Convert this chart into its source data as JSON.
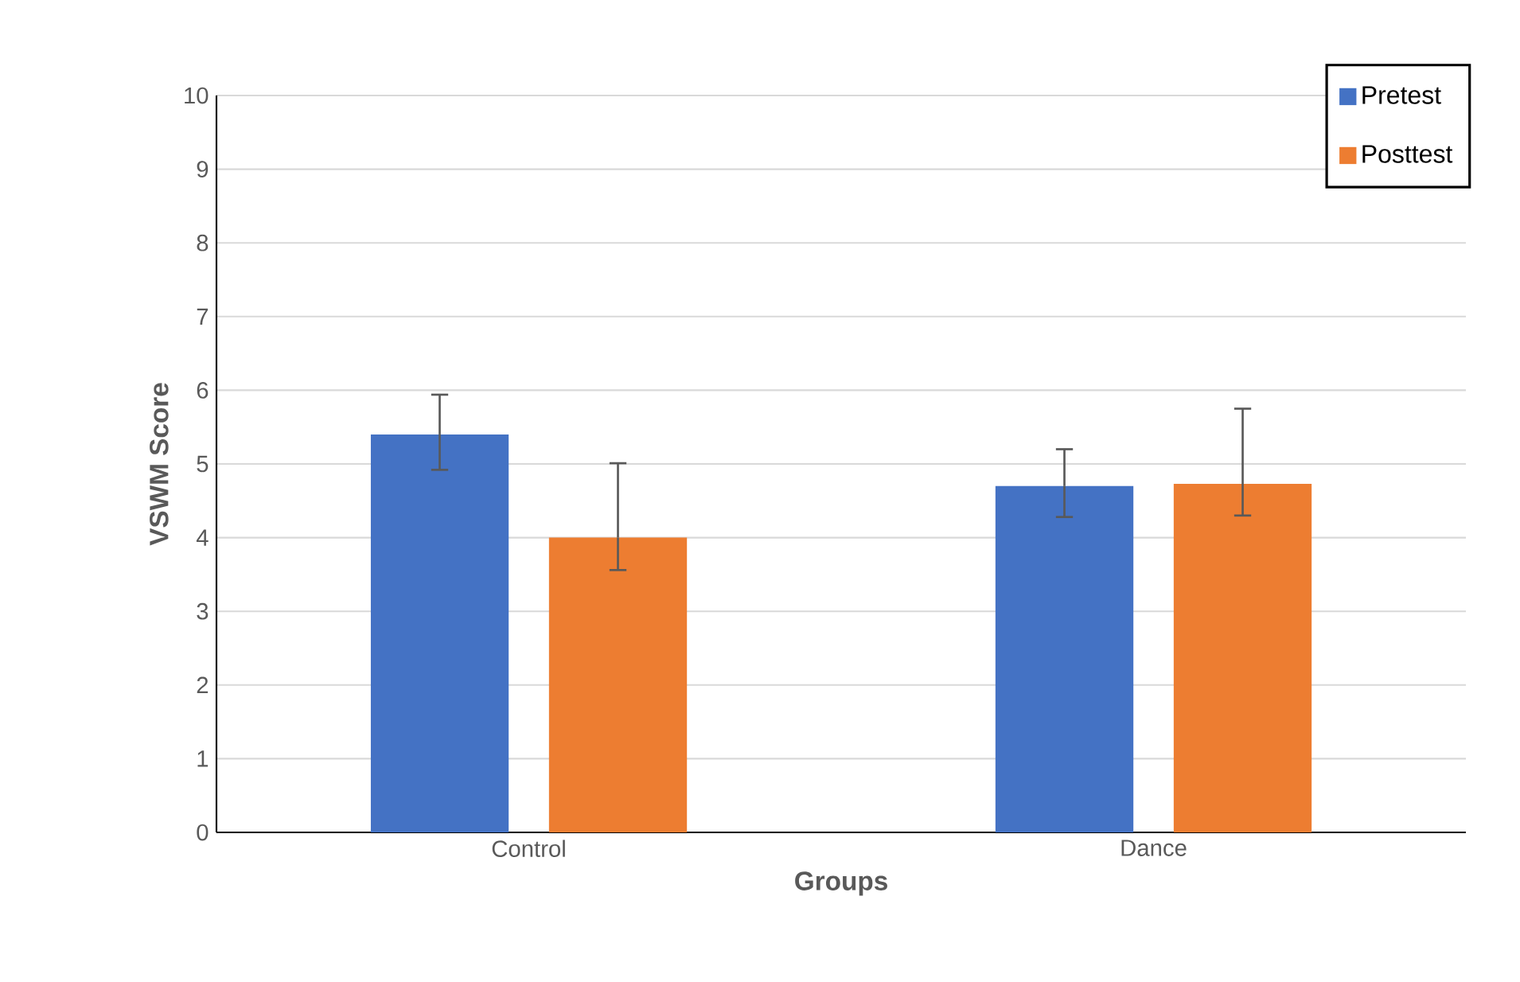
{
  "chart_data": {
    "type": "bar",
    "xlabel": "Groups",
    "ylabel": "VSWM Score",
    "categories": [
      "Control",
      "Dance"
    ],
    "series": [
      {
        "name": "Pretest",
        "color": "#4472c4",
        "values": [
          5.4,
          4.7
        ],
        "errors": [
          [
            4.92,
            5.94
          ],
          [
            4.28,
            5.2
          ]
        ]
      },
      {
        "name": "Posttest",
        "color": "#ed7d31",
        "values": [
          4.0,
          4.73
        ],
        "errors": [
          [
            3.56,
            5.01
          ],
          [
            4.3,
            5.75
          ]
        ]
      }
    ],
    "ylim": [
      0,
      10
    ],
    "yticks": [
      0,
      1,
      2,
      3,
      4,
      5,
      6,
      7,
      8,
      9,
      10
    ],
    "grid": "y",
    "legend": "top right"
  }
}
